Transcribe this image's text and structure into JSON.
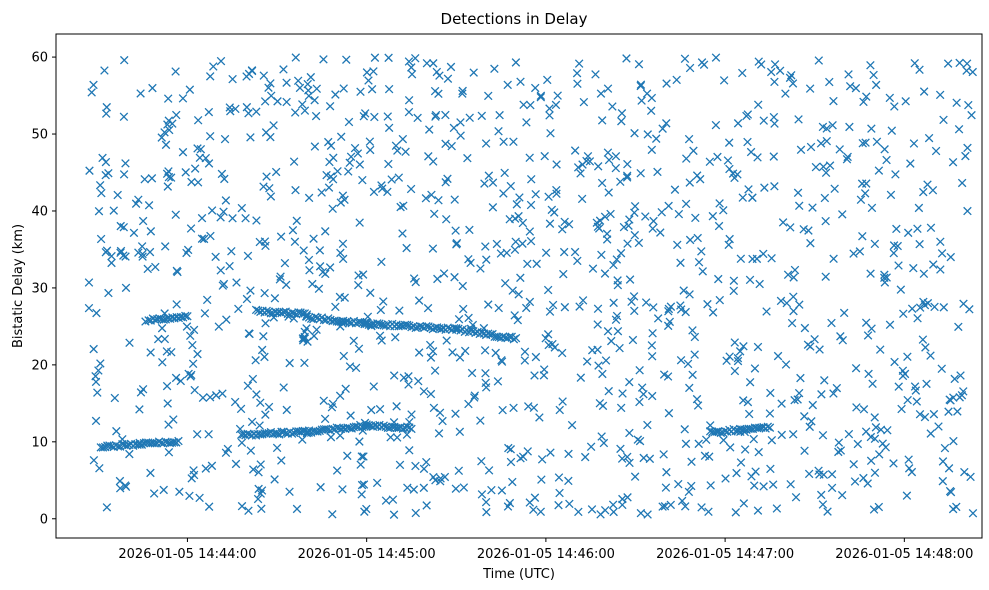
{
  "chart_data": {
    "type": "scatter",
    "title": "Detections in Delay",
    "xlabel": "Time (UTC)",
    "ylabel": "Bistatic Delay (km)",
    "marker": "x",
    "color": "#1f77b4",
    "grid": false,
    "legend": "none",
    "xlim": [
      "2026-01-05 14:43:16",
      "2026-01-05 14:48:26"
    ],
    "ylim": [
      -2.5,
      63
    ],
    "x_ticks": [
      "2026-01-05 14:44:00",
      "2026-01-05 14:45:00",
      "2026-01-05 14:46:00",
      "2026-01-05 14:47:00",
      "2026-01-05 14:48:00"
    ],
    "y_ticks": [
      0,
      10,
      20,
      30,
      40,
      50,
      60
    ],
    "time_range": [
      "2026-01-05 14:43:27",
      "2026-01-05 14:48:23"
    ],
    "tracks": [
      {
        "points": [
          [
            "2026-01-05 14:43:31",
            9.4
          ],
          [
            "2026-01-05 14:43:44",
            9.7
          ],
          [
            "2026-01-05 14:43:57",
            10.1
          ]
        ]
      },
      {
        "points": [
          [
            "2026-01-05 14:44:18",
            10.9
          ],
          [
            "2026-01-05 14:44:40",
            11.3
          ],
          [
            "2026-01-05 14:45:00",
            12.1
          ],
          [
            "2026-01-05 14:45:15",
            11.8
          ]
        ]
      },
      {
        "points": [
          [
            "2026-01-05 14:43:47",
            25.8
          ],
          [
            "2026-01-05 14:44:00",
            26.3
          ]
        ]
      },
      {
        "points": [
          [
            "2026-01-05 14:44:23",
            27.0
          ],
          [
            "2026-01-05 14:44:40",
            26.6
          ]
        ]
      },
      {
        "points": [
          [
            "2026-01-05 14:44:40",
            26.2
          ],
          [
            "2026-01-05 14:45:00",
            25.4
          ],
          [
            "2026-01-05 14:45:30",
            24.6
          ],
          [
            "2026-01-05 14:45:50",
            23.4
          ]
        ]
      },
      {
        "points": [
          [
            "2026-01-05 14:46:55",
            11.2
          ],
          [
            "2026-01-05 14:47:15",
            11.9
          ]
        ]
      }
    ]
  }
}
